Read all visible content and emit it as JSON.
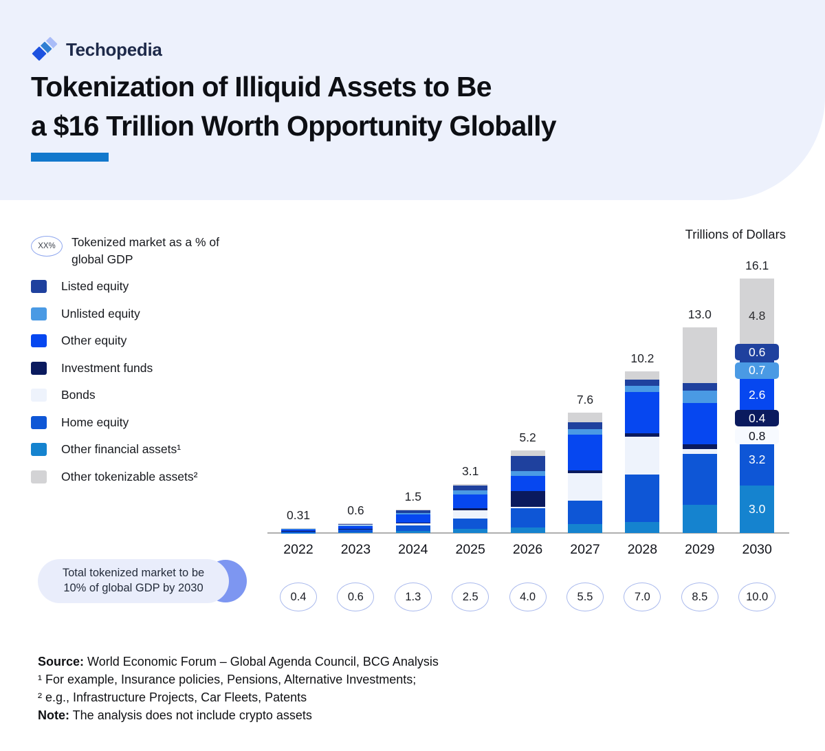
{
  "brand": {
    "name": "Techopedia"
  },
  "header": {
    "title_line1": "Tokenization of Illiquid Assets to Be",
    "title_line2": "a $16 Trillion Worth Opportunity Globally"
  },
  "legend": {
    "gdp_marker": {
      "oval_text": "XX%",
      "label": "Tokenized market as a % of global GDP"
    },
    "items": [
      {
        "key": "listed_equity",
        "label": "Listed equity",
        "color": "#1f419e"
      },
      {
        "key": "unlisted_equity",
        "label": "Unlisted equity",
        "color": "#4a9ae4"
      },
      {
        "key": "other_equity",
        "label": "Other equity",
        "color": "#0647f0"
      },
      {
        "key": "investment_funds",
        "label": "Investment funds",
        "color": "#0a1a5e"
      },
      {
        "key": "bonds",
        "label": "Bonds",
        "color": "#eef3fc"
      },
      {
        "key": "home_equity",
        "label": "Home equity",
        "color": "#0e56d6"
      },
      {
        "key": "other_financial_assets",
        "label": "Other financial assets¹",
        "color": "#1583cf"
      },
      {
        "key": "other_tokenizable_assets",
        "label": "Other tokenizable assets²",
        "color": "#d3d3d5"
      }
    ]
  },
  "chart_data": {
    "type": "bar",
    "stacked": true,
    "unit_label": "Trillions of Dollars",
    "categories": [
      "2022",
      "2023",
      "2024",
      "2025",
      "2026",
      "2027",
      "2028",
      "2029",
      "2030"
    ],
    "totals": [
      0.31,
      0.6,
      1.5,
      3.1,
      5.2,
      7.6,
      10.2,
      13.0,
      16.1
    ],
    "total_labels": [
      "0.31",
      "0.6",
      "1.5",
      "3.1",
      "5.2",
      "7.6",
      "10.2",
      "13.0",
      "16.1"
    ],
    "gdp_percent_labels": [
      "0.4",
      "0.6",
      "1.3",
      "2.5",
      "4.0",
      "5.5",
      "7.0",
      "8.5",
      "10.0"
    ],
    "ylim": [
      0,
      16.1
    ],
    "legend_position": "left",
    "grid": false,
    "note": "series listed bottom-to-top in stack order; values for unlabeled years estimated from bar pixels",
    "series": [
      {
        "key": "other_financial_assets",
        "name": "Other financial assets¹",
        "color": "#1583cf",
        "values": [
          0.02,
          0.05,
          0.12,
          0.25,
          0.35,
          0.55,
          0.7,
          1.8,
          3.0
        ],
        "label_2030": "3.0",
        "label_style": "plain-light"
      },
      {
        "key": "home_equity",
        "name": "Home equity",
        "color": "#0e56d6",
        "values": [
          0.09,
          0.16,
          0.38,
          0.65,
          1.2,
          1.5,
          3.0,
          3.2,
          3.2
        ],
        "label_2030": "3.2",
        "label_style": "plain-light"
      },
      {
        "key": "bonds",
        "name": "Bonds",
        "color": "#eef3fc",
        "values": [
          0.01,
          0.03,
          0.12,
          0.55,
          0.1,
          1.75,
          2.4,
          0.3,
          0.8
        ],
        "label_2030": "0.8",
        "label_style": "badge-light"
      },
      {
        "key": "investment_funds",
        "name": "Investment funds",
        "color": "#0a1a5e",
        "values": [
          0.02,
          0.04,
          0.05,
          0.1,
          1.0,
          0.15,
          0.2,
          0.3,
          0.4
        ],
        "label_2030": "0.4",
        "label_style": "badge"
      },
      {
        "key": "other_equity",
        "name": "Other equity",
        "color": "#0647f0",
        "values": [
          0.09,
          0.18,
          0.5,
          0.9,
          0.95,
          2.25,
          2.6,
          2.6,
          2.6
        ],
        "label_2030": "2.6",
        "label_style": "plain-light"
      },
      {
        "key": "unlisted_equity",
        "name": "Unlisted equity",
        "color": "#4a9ae4",
        "values": [
          0.02,
          0.04,
          0.1,
          0.25,
          0.3,
          0.35,
          0.4,
          0.8,
          0.7
        ],
        "label_2030": "0.7",
        "label_style": "badge"
      },
      {
        "key": "listed_equity",
        "name": "Listed equity",
        "color": "#1f419e",
        "values": [
          0.05,
          0.08,
          0.18,
          0.3,
          0.95,
          0.45,
          0.4,
          0.5,
          0.6
        ],
        "label_2030": "0.6",
        "label_style": "badge"
      },
      {
        "key": "other_tokenizable_assets",
        "name": "Other tokenizable assets²",
        "color": "#d3d3d5",
        "values": [
          0.01,
          0.02,
          0.05,
          0.1,
          0.35,
          0.6,
          0.5,
          3.5,
          4.8
        ],
        "label_2030": "4.8",
        "label_style": "plain-dark"
      }
    ]
  },
  "callout": {
    "line1": "Total tokenized market to be",
    "line2": "10% of global GDP by 2030"
  },
  "notes": {
    "source_label": "Source:",
    "source_text": " World Economic Forum – Global Agenda Council, BCG Analysis",
    "footnote1": "¹ For example, Insurance policies, Pensions, Alternative Investments;",
    "footnote2": "² e.g., Infrastructure Projects, Car Fleets, Patents",
    "note_label": "Note:",
    "note_text": " The analysis does not include crypto assets"
  },
  "colors": {
    "banner_bg": "#edf1fc",
    "accent_underline": "#1278cc",
    "callout_bg": "#e9edfb",
    "callout_crescent": "#7d96f1",
    "oval_border": "#a9b9ed",
    "axis_line": "#aeaeae"
  }
}
